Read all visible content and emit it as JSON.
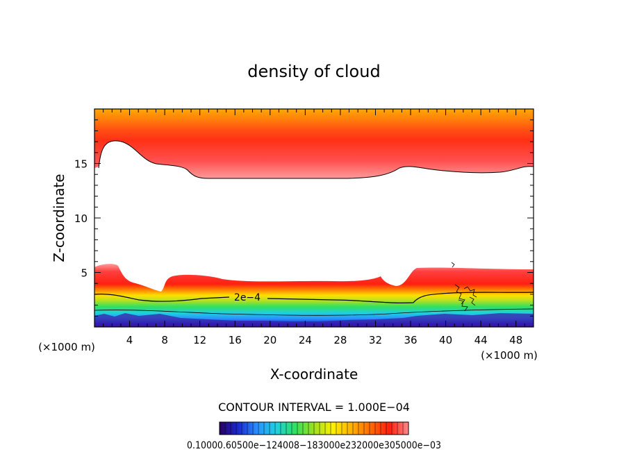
{
  "chart_data": {
    "type": "heatmap",
    "title": "density of cloud",
    "xlabel": "X-coordinate",
    "ylabel": "Z-coordinate",
    "x_unit": "(×1000 m)",
    "z_unit": "(×1000 m)",
    "xlim": [
      0,
      50
    ],
    "ylim": [
      0,
      20
    ],
    "x_ticks": [
      4,
      8,
      12,
      16,
      20,
      24,
      28,
      32,
      36,
      40,
      44,
      48
    ],
    "y_ticks": [
      5,
      10,
      15
    ],
    "contour_interval_text": "CONTOUR INTERVAL = 1.000E−04",
    "contour_label": "2e−4",
    "colorbar_label": "0.10000.60500e−124008−183000e232000e305000e−03",
    "colorscale": [
      "#2a0060",
      "#1a2ad0",
      "#2a90ff",
      "#20d0e0",
      "#30e060",
      "#9ee020",
      "#fff000",
      "#ffb000",
      "#ff6a00",
      "#ff2010",
      "#ff8a8a"
    ]
  }
}
